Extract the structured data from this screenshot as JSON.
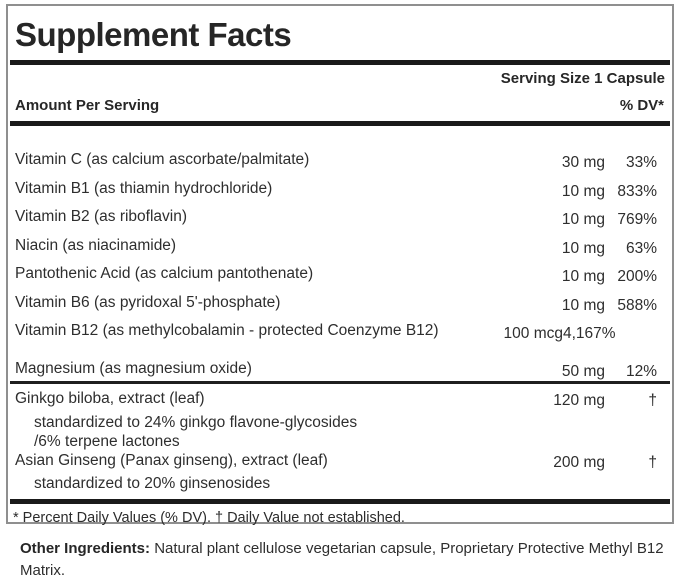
{
  "colors": {
    "background": "#ffffff",
    "text": "#2e2e2e",
    "bar": "#1a1a1a",
    "panel_border": "#8f8f8f"
  },
  "panel": {
    "title": "Supplement Facts",
    "serving_size": "Serving Size 1 Capsule",
    "header": {
      "amount_label": "Amount Per Serving",
      "dv_label": "% DV*"
    },
    "nutrients": [
      {
        "label": "Vitamin C (as calcium ascorbate/palmitate)",
        "amount": "30 mg",
        "dv": "33%"
      },
      {
        "label": "Vitamin B1 (as thiamin hydrochloride)",
        "amount": "10 mg",
        "dv": "833%"
      },
      {
        "label": "Vitamin B2 (as riboflavin)",
        "amount": "10 mg",
        "dv": "769%"
      },
      {
        "label": "Niacin (as niacinamide)",
        "amount": "10 mg",
        "dv": "63%"
      },
      {
        "label": "Pantothenic Acid (as calcium pantothenate)",
        "amount": "10 mg",
        "dv": "200%"
      },
      {
        "label": "Vitamin B6 (as pyridoxal 5'-phosphate)",
        "amount": "10 mg",
        "dv": "588%"
      },
      {
        "label": "Vitamin B12 (as methylcobalamin - protected Coenzyme B12)",
        "amount": "100 mcg",
        "dv": "4,167%"
      },
      {
        "label": "Magnesium (as magnesium oxide)",
        "amount": "50 mg",
        "dv": "12%"
      }
    ],
    "botanicals": [
      {
        "label": "Ginkgo biloba, extract (leaf)",
        "amount": "120 mg",
        "dv": "†",
        "note_lines": {
          "0": "standardized to 24% ginkgo flavone-glycosides",
          "1": "/6% terpene lactones"
        }
      },
      {
        "label": "Asian Ginseng (Panax ginseng), extract (leaf)",
        "amount": "200 mg",
        "dv": "†",
        "note_lines": {
          "0": "standardized to 20% ginsenosides"
        }
      }
    ],
    "footnote": "* Percent Daily Values (% DV). † Daily Value not established."
  },
  "other_ingredients": {
    "label": "Other Ingredients:",
    "text": "Natural plant cellulose vegetarian capsule, Proprietary Protective Methyl B12 Matrix."
  }
}
